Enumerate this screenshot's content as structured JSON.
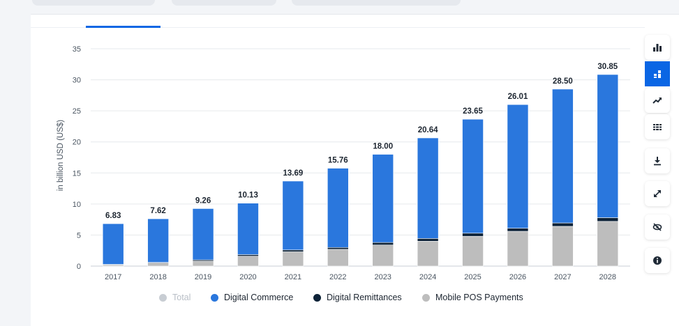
{
  "chart_data": {
    "type": "bar",
    "stacked": true,
    "categories": [
      "2017",
      "2018",
      "2019",
      "2020",
      "2021",
      "2022",
      "2023",
      "2024",
      "2025",
      "2026",
      "2027",
      "2028"
    ],
    "totals": [
      "6.83",
      "7.62",
      "9.26",
      "10.13",
      "13.69",
      "15.76",
      "18.00",
      "20.64",
      "23.65",
      "26.01",
      "28.50",
      "30.85"
    ],
    "series": [
      {
        "name": "Mobile POS Payments",
        "color": "#bdbdbd",
        "values": [
          0.2,
          0.5,
          0.8,
          1.6,
          2.3,
          2.7,
          3.4,
          4.0,
          4.8,
          5.6,
          6.4,
          7.2
        ]
      },
      {
        "name": "Digital Remittances",
        "color": "#0e2338",
        "values": [
          0.08,
          0.1,
          0.2,
          0.25,
          0.3,
          0.3,
          0.4,
          0.45,
          0.5,
          0.5,
          0.55,
          0.6
        ]
      },
      {
        "name": "Digital Commerce",
        "color": "#2a77dd",
        "values": [
          6.55,
          7.02,
          8.26,
          8.28,
          11.09,
          12.76,
          14.2,
          16.19,
          18.35,
          19.91,
          21.55,
          23.05
        ]
      }
    ],
    "ylabel": "in billion USD (US$)",
    "ylim": [
      0,
      35
    ],
    "yticks": [
      "0",
      "5",
      "10",
      "15",
      "20",
      "25",
      "30",
      "35"
    ],
    "grid": true,
    "legend_position": "bottom",
    "legend": [
      {
        "label": "Total",
        "color": "#c8cdd3",
        "state": "disabled"
      },
      {
        "label": "Digital Commerce",
        "color": "#2a77dd",
        "state": "enabled"
      },
      {
        "label": "Digital Remittances",
        "color": "#0e2338",
        "state": "enabled"
      },
      {
        "label": "Mobile POS Payments",
        "color": "#bdbdbd",
        "state": "enabled"
      }
    ]
  },
  "toolbar": {
    "buttons": [
      {
        "name": "bar-chart-icon",
        "state": "default"
      },
      {
        "name": "stacked-bar-icon",
        "state": "active"
      },
      {
        "name": "trend-line-icon",
        "state": "default"
      },
      {
        "name": "table-grid-icon",
        "state": "default"
      },
      {
        "name": "download-icon",
        "state": "default"
      },
      {
        "name": "fullscreen-icon",
        "state": "default"
      },
      {
        "name": "hide-eye-icon",
        "state": "default"
      },
      {
        "name": "info-icon",
        "state": "default"
      }
    ],
    "accent_color": "#0a66e4"
  }
}
